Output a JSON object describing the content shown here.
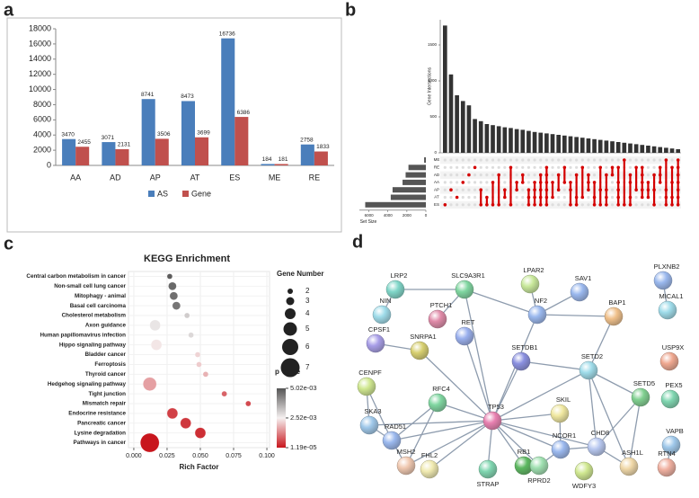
{
  "chart_data": [
    {
      "type": "bar",
      "panel_label": "a",
      "categories": [
        "AA",
        "AD",
        "AP",
        "AT",
        "ES",
        "ME",
        "RE"
      ],
      "series": [
        {
          "name": "AS",
          "color": "#4a7ebb",
          "values": [
            3470,
            3071,
            8741,
            8473,
            16736,
            184,
            2758
          ]
        },
        {
          "name": "Gene",
          "color": "#c0504d",
          "values": [
            2455,
            2131,
            3506,
            3699,
            6386,
            181,
            1833
          ]
        }
      ],
      "ylim": [
        0,
        18000
      ],
      "yticks": [
        0,
        2000,
        4000,
        6000,
        8000,
        10000,
        12000,
        14000,
        16000,
        18000
      ],
      "legend": "bottom"
    },
    {
      "type": "upset",
      "panel_label": "b",
      "ylabel": "Gene Intersections",
      "xlabel": "Set Size",
      "sets": [
        "ME",
        "RE",
        "AD",
        "AA",
        "AP",
        "AT",
        "ES"
      ],
      "set_sizes": [
        181,
        1833,
        2131,
        2455,
        3506,
        3699,
        6386
      ],
      "xlim": [
        0,
        7000
      ],
      "xticks": [
        6000,
        4000,
        2000,
        0
      ],
      "values": [
        1770,
        1090,
        800,
        720,
        660,
        470,
        440,
        400,
        385,
        370,
        355,
        345,
        330,
        320,
        305,
        290,
        280,
        270,
        260,
        250,
        240,
        230,
        220,
        210,
        200,
        190,
        180,
        170,
        160,
        150,
        140,
        130,
        120,
        110,
        100,
        90,
        80,
        70,
        60,
        50
      ],
      "membership": [
        [
          6
        ],
        [
          4
        ],
        [
          5
        ],
        [
          3
        ],
        [
          2
        ],
        [
          1
        ],
        [
          4,
          6
        ],
        [
          5,
          6
        ],
        [
          3,
          6
        ],
        [
          2,
          6
        ],
        [
          4,
          5
        ],
        [
          1,
          6
        ],
        [
          3,
          4
        ],
        [
          2,
          3
        ],
        [
          4,
          5,
          6
        ],
        [
          3,
          4,
          5,
          6
        ],
        [
          2,
          3,
          4,
          5,
          6
        ],
        [
          1,
          2,
          3,
          4,
          5,
          6
        ],
        [
          3,
          5
        ],
        [
          2,
          4
        ],
        [
          1,
          3
        ],
        [
          3,
          4,
          6
        ],
        [
          2,
          5,
          6
        ],
        [
          1,
          5
        ],
        [
          2,
          3,
          4
        ],
        [
          3,
          5,
          6
        ],
        [
          1,
          4,
          6
        ],
        [
          2,
          4,
          5,
          6
        ],
        [
          1,
          2
        ],
        [
          1,
          3,
          4,
          5,
          6
        ],
        [
          0,
          6
        ],
        [
          2,
          3,
          5,
          6
        ],
        [
          1,
          4
        ],
        [
          1,
          2,
          3,
          4,
          5
        ],
        [
          3,
          4,
          5
        ],
        [
          2,
          4,
          6
        ],
        [
          1,
          2,
          3
        ],
        [
          0,
          4,
          5,
          6
        ],
        [
          1,
          3,
          5,
          6
        ],
        [
          0,
          1,
          2,
          3,
          4,
          5,
          6
        ]
      ],
      "color": "#333333",
      "dot_color": "#d40000",
      "ylim": [
        0,
        1850
      ],
      "yticks": [
        0,
        500,
        1000,
        1500
      ]
    },
    {
      "type": "bubble",
      "panel_label": "c",
      "title": "KEGG Enrichment",
      "xlabel": "Rich Factor",
      "categories": [
        "Central carbon metabolism in cancer",
        "Non-small cell lung cancer",
        "Mitophagy - animal",
        "Basal cell carcinoma",
        "Cholesterol metabolism",
        "Axon guidance",
        "Human papillomavirus infection",
        "Hippo signaling pathway",
        "Bladder cancer",
        "Ferroptosis",
        "Thyroid cancer",
        "Hedgehog signaling pathway",
        "Tight junction",
        "Mismatch repair",
        "Endocrine resistance",
        "Pancreatic cancer",
        "Lysine degradation",
        "Pathways in cancer"
      ],
      "rich_factor": [
        0.027,
        0.029,
        0.03,
        0.032,
        0.04,
        0.016,
        0.043,
        0.017,
        0.048,
        0.049,
        0.054,
        0.012,
        0.068,
        0.086,
        0.029,
        0.039,
        0.05,
        0.012
      ],
      "gene_number": [
        2,
        3,
        3,
        3,
        2,
        4,
        2,
        4,
        2,
        2,
        2,
        5,
        2,
        2,
        4,
        4,
        4,
        7
      ],
      "p_value": [
        0.0049,
        0.0047,
        0.0046,
        0.0045,
        0.0031,
        0.0027,
        0.0029,
        0.0024,
        0.0022,
        0.0021,
        0.0018,
        0.0016,
        0.0009,
        0.0006,
        0.0005,
        0.0004,
        0.0003,
        1.19e-05
      ],
      "xlim": [
        -0.004,
        0.102
      ],
      "xticks": [
        {
          "value": 0,
          "label": "0.000"
        },
        {
          "value": 0.025,
          "label": "0.025"
        },
        {
          "value": 0.05,
          "label": "0.050"
        },
        {
          "value": 0.075,
          "label": "0.075"
        },
        {
          "value": 0.1,
          "label": "0.100"
        }
      ],
      "size_title": "Gene Number",
      "size_legend": [
        2,
        3,
        4,
        5,
        6,
        7
      ],
      "color_title": "p Value",
      "color_ticks": [
        {
          "value": 0.00502,
          "label": "5.02e-03"
        },
        {
          "value": 0.00252,
          "label": "2.52e-03"
        },
        {
          "value": 1.19e-05,
          "label": "1.19e-05"
        }
      ],
      "colorlim": [
        1.19e-05,
        0.00502
      ],
      "low_color": "#c8161d",
      "mid_color": "#f5f0f0",
      "high_color": "#555555",
      "grid": true
    }
  ],
  "network": {
    "panel_label": "d",
    "nodes": [
      {
        "label": "LRP2",
        "color": "#7fd6c8"
      },
      {
        "label": "SLC9A3R1",
        "color": "#7fd6a0"
      },
      {
        "label": "LPAR2",
        "color": "#c8e89a"
      },
      {
        "label": "SAV1",
        "color": "#9ab8ee"
      },
      {
        "label": "PLXNB2",
        "color": "#9ab8ee"
      },
      {
        "label": "NIN",
        "color": "#9fdcea"
      },
      {
        "label": "PTCH1",
        "color": "#e08aa8"
      },
      {
        "label": "RET",
        "color": "#9ab0ee"
      },
      {
        "label": "NF2",
        "color": "#9ab8ee"
      },
      {
        "label": "BAP1",
        "color": "#f0c08a"
      },
      {
        "label": "MICAL1",
        "color": "#9fdcea"
      },
      {
        "label": "CPSF1",
        "color": "#a89ee8"
      },
      {
        "label": "SNRPA1",
        "color": "#d8d070"
      },
      {
        "label": "SETDB1",
        "color": "#8a90e0"
      },
      {
        "label": "SETD2",
        "color": "#9fdcea"
      },
      {
        "label": "USP9X",
        "color": "#f0a890"
      },
      {
        "label": "CENPF",
        "color": "#d0e890"
      },
      {
        "label": "SETD5",
        "color": "#80d090"
      },
      {
        "label": "PEX5",
        "color": "#7fd6b0"
      },
      {
        "label": "RFC4",
        "color": "#7fd6a0"
      },
      {
        "label": "TP53",
        "color": "#e880b0"
      },
      {
        "label": "SKIL",
        "color": "#f0e8a0"
      },
      {
        "label": "SKA3",
        "color": "#9fc8ea"
      },
      {
        "label": "RAD51",
        "color": "#9ab8ee"
      },
      {
        "label": "NCOR1",
        "color": "#9ab8ee"
      },
      {
        "label": "CHD8",
        "color": "#b8c8f0"
      },
      {
        "label": "ASH1L",
        "color": "#f0d8a8"
      },
      {
        "label": "VAPB",
        "color": "#9fc8ea"
      },
      {
        "label": "RB1",
        "color": "#5cb860"
      },
      {
        "label": "FHL2",
        "color": "#f0eab0"
      },
      {
        "label": "MSH2",
        "color": "#f0c8b0"
      },
      {
        "label": "STRAP",
        "color": "#7fd6b0"
      },
      {
        "label": "RPRD2",
        "color": "#9fe0b0"
      },
      {
        "label": "WDFY3",
        "color": "#d0e890"
      },
      {
        "label": "RTN4",
        "color": "#f0b0a0"
      }
    ],
    "edges": [
      [
        20,
        7
      ],
      [
        20,
        8
      ],
      [
        20,
        13
      ],
      [
        20,
        14
      ],
      [
        20,
        21
      ],
      [
        20,
        19
      ],
      [
        20,
        23
      ],
      [
        20,
        24
      ],
      [
        20,
        28
      ],
      [
        20,
        29
      ],
      [
        20,
        30
      ],
      [
        20,
        31
      ],
      [
        20,
        32
      ],
      [
        20,
        25
      ],
      [
        20,
        1
      ],
      [
        20,
        12
      ],
      [
        20,
        22
      ],
      [
        19,
        23
      ],
      [
        19,
        30
      ],
      [
        23,
        30
      ],
      [
        23,
        22
      ],
      [
        22,
        16
      ],
      [
        16,
        23
      ],
      [
        0,
        1
      ],
      [
        0,
        5
      ],
      [
        1,
        8
      ],
      [
        1,
        6
      ],
      [
        8,
        2
      ],
      [
        8,
        3
      ],
      [
        8,
        9
      ],
      [
        14,
        17
      ],
      [
        14,
        25
      ],
      [
        14,
        26
      ],
      [
        14,
        9
      ],
      [
        17,
        25
      ],
      [
        17,
        26
      ],
      [
        25,
        26
      ],
      [
        24,
        21
      ],
      [
        24,
        25
      ],
      [
        4,
        10
      ],
      [
        27,
        34
      ],
      [
        13,
        14
      ],
      [
        11,
        12
      ],
      [
        24,
        32
      ]
    ]
  }
}
